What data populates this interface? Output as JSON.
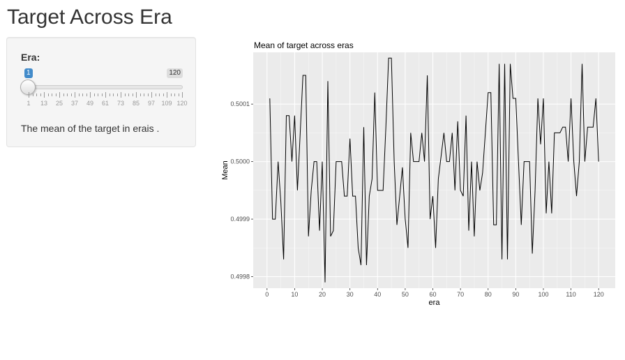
{
  "page": {
    "title": "Target Across Era"
  },
  "sidebar": {
    "slider_label": "Era:",
    "slider": {
      "min": 1,
      "max": 120,
      "value": 1,
      "value_label": "1",
      "max_label": "120"
    },
    "grid_labels": [
      "1",
      "13",
      "25",
      "37",
      "49",
      "61",
      "73",
      "85",
      "97",
      "109",
      "120"
    ],
    "output_text": "The mean of the target in erais ."
  },
  "colors": {
    "accent": "#428bca",
    "panel_bg": "#f5f5f5",
    "plot_bg": "#ebebeb"
  },
  "chart_data": {
    "type": "line",
    "title": "Mean of target across eras",
    "xlabel": "era",
    "ylabel": "Mean",
    "xlim": [
      -5,
      126
    ],
    "ylim": [
      0.49978,
      0.50019
    ],
    "x_ticks": [
      0,
      10,
      20,
      30,
      40,
      50,
      60,
      70,
      80,
      90,
      100,
      110,
      120
    ],
    "y_ticks": [
      0.4998,
      0.4999,
      0.5,
      0.5001
    ],
    "y_tick_labels": [
      "0.4998",
      "0.4999",
      "0.5000",
      "0.5001"
    ],
    "grid": true,
    "series": [
      {
        "x": [
          1,
          2,
          3,
          4,
          5,
          6,
          7,
          8,
          9,
          10,
          11,
          12,
          13,
          14,
          15,
          16,
          17,
          18,
          19,
          20,
          21,
          22,
          23,
          24,
          25,
          26,
          27,
          28,
          29,
          30,
          31,
          32,
          33,
          34,
          35,
          36,
          37,
          38,
          39,
          40,
          41,
          42,
          43,
          44,
          45,
          46,
          47,
          48,
          49,
          50,
          51,
          52,
          53,
          54,
          55,
          56,
          57,
          58,
          59,
          60,
          61,
          62,
          63,
          64,
          65,
          66,
          67,
          68,
          69,
          70,
          71,
          72,
          73,
          74,
          75,
          76,
          77,
          78,
          79,
          80,
          81,
          82,
          83,
          84,
          85,
          86,
          87,
          88,
          89,
          90,
          91,
          92,
          93,
          94,
          95,
          96,
          97,
          98,
          99,
          100,
          101,
          102,
          103,
          104,
          105,
          106,
          107,
          108,
          109,
          110,
          111,
          112,
          113,
          114,
          115,
          116,
          117,
          118,
          119,
          120
        ],
        "values": [
          0.50011,
          0.4999,
          0.4999,
          0.5,
          0.49993,
          0.49983,
          0.50008,
          0.50008,
          0.5,
          0.50008,
          0.49995,
          0.50005,
          0.50015,
          0.50015,
          0.49987,
          0.49995,
          0.5,
          0.5,
          0.49988,
          0.5,
          0.49979,
          0.50014,
          0.49987,
          0.49988,
          0.5,
          0.5,
          0.5,
          0.49994,
          0.49994,
          0.50004,
          0.49994,
          0.49994,
          0.49985,
          0.49982,
          0.50006,
          0.49982,
          0.49994,
          0.49997,
          0.50012,
          0.49995,
          0.49995,
          0.49995,
          0.50006,
          0.50018,
          0.50018,
          0.5,
          0.49989,
          0.49994,
          0.49999,
          0.4999,
          0.49985,
          0.50005,
          0.5,
          0.5,
          0.5,
          0.50005,
          0.5,
          0.50015,
          0.4999,
          0.49994,
          0.49985,
          0.49997,
          0.50001,
          0.50005,
          0.5,
          0.5,
          0.50005,
          0.49995,
          0.50007,
          0.49995,
          0.49994,
          0.50008,
          0.49988,
          0.5,
          0.49987,
          0.5,
          0.49995,
          0.49998,
          0.50005,
          0.50012,
          0.50012,
          0.49989,
          0.49989,
          0.50017,
          0.49983,
          0.50017,
          0.49983,
          0.50017,
          0.50011,
          0.50011,
          0.5,
          0.49989,
          0.5,
          0.5,
          0.5,
          0.49984,
          0.49995,
          0.50011,
          0.50003,
          0.50011,
          0.49991,
          0.5,
          0.49991,
          0.50005,
          0.50005,
          0.50005,
          0.50006,
          0.50006,
          0.5,
          0.50011,
          0.5,
          0.49994,
          0.5,
          0.50017,
          0.5,
          0.50006,
          0.50006,
          0.50006,
          0.50011,
          0.5
        ]
      }
    ]
  }
}
